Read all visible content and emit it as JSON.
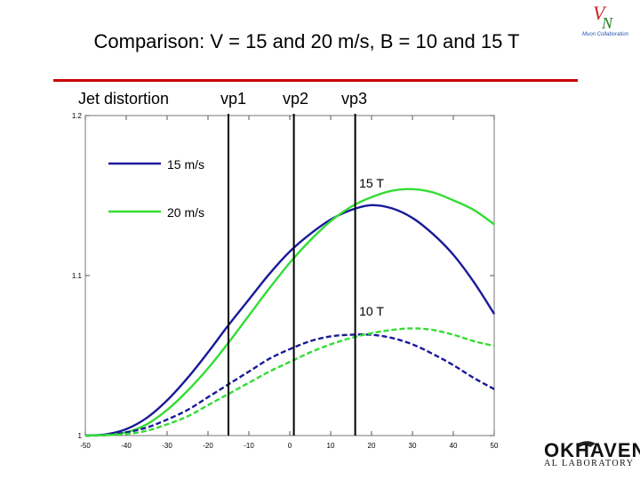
{
  "slide": {
    "title": "Comparison: V = 15 and 20 m/s,  B = 10 and 15 T",
    "y_caption": "Jet distortion",
    "vp_labels": [
      "vp1",
      "vp2",
      "vp3"
    ]
  },
  "logos": {
    "collab_text": "Muon Collaboration",
    "lab_name_line1": "OKHAVEN",
    "lab_name_line2": "AL LABORATORY"
  },
  "chart_data": {
    "type": "line",
    "x": [
      -50,
      -45,
      -40,
      -35,
      -30,
      -25,
      -20,
      -15,
      -10,
      -5,
      0,
      5,
      10,
      15,
      20,
      25,
      30,
      35,
      40,
      45,
      50
    ],
    "xlim": [
      -50,
      50
    ],
    "ylim": [
      1.0,
      1.2
    ],
    "x_ticks": [
      -50,
      -40,
      -30,
      -20,
      -10,
      0,
      10,
      20,
      30,
      40,
      50
    ],
    "y_ticks": [
      1,
      1.1,
      1.2
    ],
    "y_tick_labels": [
      "1",
      "1.1",
      "1.2"
    ],
    "grid": false,
    "legend_position": "top-left",
    "legend": [
      {
        "label": "15 m/s",
        "color": "#1a1a99"
      },
      {
        "label": "20 m/s",
        "color": "#33dd33"
      }
    ],
    "annotations": [
      {
        "text": "15 T",
        "x": 20,
        "y": 1.155
      },
      {
        "text": "10 T",
        "x": 20,
        "y": 1.075
      }
    ],
    "vertical_lines": [
      -15,
      1,
      16
    ],
    "series": [
      {
        "field": "15 T",
        "speed": "15 m/s",
        "color": "#1a1a99",
        "dashed": false,
        "values": [
          1.0,
          1.0007,
          1.004,
          1.011,
          1.022,
          1.036,
          1.052,
          1.069,
          1.085,
          1.101,
          1.115,
          1.126,
          1.135,
          1.141,
          1.144,
          1.142,
          1.136,
          1.126,
          1.113,
          1.096,
          1.076
        ]
      },
      {
        "field": "15 T",
        "speed": "20 m/s",
        "color": "#33dd33",
        "dashed": false,
        "values": [
          1.0,
          1.0004,
          1.002,
          1.007,
          1.016,
          1.028,
          1.042,
          1.058,
          1.075,
          1.092,
          1.108,
          1.122,
          1.134,
          1.143,
          1.149,
          1.153,
          1.154,
          1.152,
          1.147,
          1.141,
          1.132
        ]
      },
      {
        "field": "10 T",
        "speed": "15 m/s",
        "color": "#1a1a99",
        "dashed": true,
        "values": [
          1.0,
          1.0003,
          1.002,
          1.005,
          1.01,
          1.016,
          1.024,
          1.032,
          1.04,
          1.048,
          1.054,
          1.059,
          1.062,
          1.063,
          1.063,
          1.061,
          1.057,
          1.051,
          1.044,
          1.036,
          1.029
        ]
      },
      {
        "field": "10 T",
        "speed": "20 m/s",
        "color": "#33dd33",
        "dashed": true,
        "values": [
          1.0,
          1.0002,
          1.001,
          1.003,
          1.007,
          1.012,
          1.019,
          1.026,
          1.033,
          1.04,
          1.046,
          1.052,
          1.057,
          1.061,
          1.064,
          1.066,
          1.067,
          1.066,
          1.063,
          1.059,
          1.056
        ]
      }
    ]
  }
}
